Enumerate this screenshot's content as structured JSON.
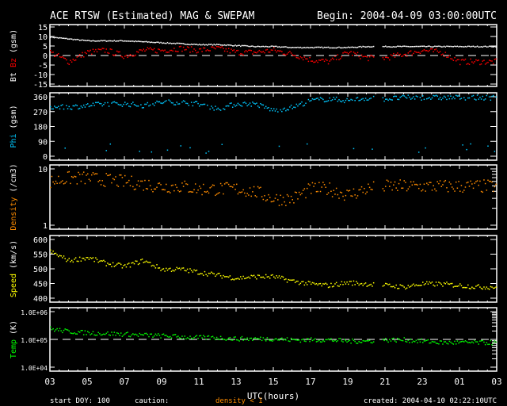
{
  "header": {
    "title": "ACE RTSW (Estimated) MAG & SWEPAM",
    "begin": "Begin: 2004-04-09 03:00:00UTC"
  },
  "footer": {
    "start_doy": "start DOY: 100",
    "caution": "caution:",
    "caution_note": "density < 1",
    "created": "created: 2004-04-10 02:22:10UTC",
    "xlabel": "UTC(hours)"
  },
  "colors": {
    "bt": "#ffffff",
    "bz": "#ff0000",
    "phi": "#00c8ff",
    "density": "#ff8c00",
    "speed": "#ffff00",
    "temp": "#00ff00",
    "axis": "#ffffff"
  },
  "chart_data": {
    "type": "scatter",
    "x_hours": [
      3,
      4,
      5,
      6,
      7,
      8,
      9,
      10,
      11,
      12,
      13,
      14,
      15,
      16,
      17,
      18,
      19,
      20,
      21,
      22,
      23,
      24,
      25,
      26
    ],
    "x_tick_labels": [
      "03",
      "05",
      "07",
      "09",
      "11",
      "13",
      "15",
      "17",
      "19",
      "21",
      "23",
      "01",
      "03"
    ],
    "panels": [
      {
        "id": "mag",
        "ylabel": [
          "Bt",
          "Bz",
          "(gsm)"
        ],
        "ylim": [
          -15,
          15
        ],
        "scale": "linear",
        "ticks": [
          "15",
          "10",
          "5",
          "0",
          "-5",
          "-10",
          "-15"
        ],
        "tick_values": [
          15,
          10,
          5,
          0,
          -5,
          -10,
          -15
        ],
        "dashed": 0,
        "series": [
          {
            "name": "Bt",
            "color": "bt",
            "values": [
              10,
              9,
              8,
              8,
              8,
              7.5,
              7,
              6.5,
              6,
              6,
              5.5,
              5,
              5,
              4.5,
              4.5,
              4.5,
              4.5,
              5,
              5,
              5,
              5,
              5,
              5,
              5
            ]
          },
          {
            "name": "Bz",
            "color": "bz",
            "values": [
              2,
              -3,
              2,
              3,
              0,
              3,
              3,
              4,
              3,
              4,
              2,
              2,
              3,
              1,
              -2,
              -3,
              2,
              -1,
              -1,
              1,
              3,
              2,
              -3,
              -3
            ]
          }
        ]
      },
      {
        "id": "phi",
        "ylabel": [
          "Phi",
          "(gsm)"
        ],
        "ylim": [
          0,
          360
        ],
        "scale": "linear",
        "ticks": [
          "360",
          "270",
          "180",
          "90",
          "0"
        ],
        "tick_values": [
          360,
          270,
          180,
          90,
          0
        ],
        "series": [
          {
            "name": "Phi",
            "color": "phi",
            "values": [
              300,
              300,
              310,
              320,
              320,
              310,
              330,
              330,
              320,
              290,
              320,
              320,
              280,
              300,
              340,
              350,
              340,
              355,
              350,
              358,
              358,
              358,
              358,
              358
            ]
          }
        ]
      },
      {
        "id": "density",
        "ylabel": [
          "Density",
          "(/cm3)"
        ],
        "ylim": [
          1,
          10
        ],
        "scale": "log",
        "ticks": [
          "10",
          "1"
        ],
        "tick_values": [
          10,
          1
        ],
        "series": [
          {
            "name": "Density",
            "color": "density",
            "values": [
              6,
              7,
              7,
              6.5,
              6,
              5.5,
              5,
              5,
              4.5,
              4.5,
              4.5,
              4,
              3,
              3,
              4.5,
              4.5,
              3.5,
              4.5,
              5,
              5,
              5,
              5,
              5,
              5
            ]
          }
        ]
      },
      {
        "id": "speed",
        "ylabel": [
          "Speed",
          "(km/s)"
        ],
        "ylim": [
          400,
          600
        ],
        "scale": "linear",
        "ticks": [
          "600",
          "550",
          "500",
          "450",
          "400"
        ],
        "tick_values": [
          600,
          550,
          500,
          450,
          400
        ],
        "series": [
          {
            "name": "Speed",
            "color": "speed",
            "values": [
              560,
              530,
              540,
              520,
              510,
              530,
              500,
              500,
              490,
              480,
              470,
              475,
              475,
              460,
              450,
              445,
              455,
              450,
              445,
              440,
              450,
              450,
              445,
              440
            ]
          }
        ]
      },
      {
        "id": "temp",
        "ylabel": [
          "Temp",
          "(K)"
        ],
        "ylim": [
          10000,
          1000000
        ],
        "scale": "log",
        "ticks": [
          "1.0E+06",
          "1.0E+05",
          "1.0E+04"
        ],
        "tick_values": [
          1000000,
          100000,
          10000
        ],
        "dashed": 100000,
        "series": [
          {
            "name": "Temp",
            "color": "temp",
            "values": [
              250000,
              200000,
              180000,
              170000,
              160000,
              150000,
              140000,
              130000,
              120000,
              120000,
              110000,
              110000,
              110000,
              100000,
              100000,
              100000,
              90000,
              90000,
              100000,
              100000,
              90000,
              80000,
              80000,
              80000
            ]
          }
        ]
      }
    ]
  }
}
